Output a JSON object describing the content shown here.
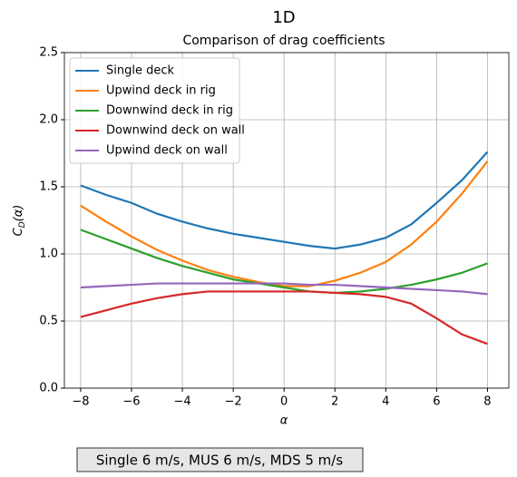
{
  "chart_data": {
    "type": "line",
    "suptitle": "1D",
    "title": "Comparison of drag coefficients",
    "xlabel": "α",
    "ylabel": {
      "main": "C",
      "sub": "D",
      "rest": "(α)"
    },
    "annotation": "Single 6 m/s, MUS 6 m/s, MDS 5 m/s",
    "x": [
      -8,
      -7,
      -6,
      -5,
      -4,
      -3,
      -2,
      -1,
      0,
      1,
      2,
      3,
      4,
      5,
      6,
      7,
      8
    ],
    "series": [
      {
        "name": "Single deck",
        "color": "#1f77b4",
        "values": [
          1.51,
          1.44,
          1.38,
          1.3,
          1.24,
          1.19,
          1.15,
          1.12,
          1.09,
          1.06,
          1.04,
          1.07,
          1.12,
          1.22,
          1.38,
          1.55,
          1.76
        ]
      },
      {
        "name": "Upwind deck in rig",
        "color": "#ff7f0e",
        "values": [
          1.36,
          1.24,
          1.13,
          1.03,
          0.95,
          0.88,
          0.83,
          0.79,
          0.76,
          0.76,
          0.8,
          0.86,
          0.94,
          1.07,
          1.24,
          1.45,
          1.69
        ]
      },
      {
        "name": "Downwind deck in rig",
        "color": "#2ca02c",
        "values": [
          1.18,
          1.11,
          1.04,
          0.97,
          0.91,
          0.86,
          0.81,
          0.78,
          0.75,
          0.72,
          0.71,
          0.72,
          0.74,
          0.77,
          0.81,
          0.86,
          0.93
        ]
      },
      {
        "name": "Downwind deck on wall",
        "color": "#d62728",
        "values": [
          0.53,
          0.58,
          0.63,
          0.67,
          0.7,
          0.72,
          0.72,
          0.72,
          0.72,
          0.72,
          0.71,
          0.7,
          0.68,
          0.63,
          0.52,
          0.4,
          0.33
        ]
      },
      {
        "name": "Upwind deck on wall",
        "color": "#9467bd",
        "values": [
          0.75,
          0.76,
          0.77,
          0.78,
          0.78,
          0.78,
          0.78,
          0.78,
          0.78,
          0.77,
          0.77,
          0.76,
          0.75,
          0.74,
          0.73,
          0.72,
          0.7
        ]
      }
    ],
    "xlim": [
      -8.64,
      8.84
    ],
    "xticks": [
      {
        "value": -8,
        "label": "−8"
      },
      {
        "value": -6,
        "label": "−6"
      },
      {
        "value": -4,
        "label": "−4"
      },
      {
        "value": -2,
        "label": "−2"
      },
      0,
      2,
      4,
      6,
      8
    ],
    "ylim": [
      0,
      2.5
    ],
    "yticks": [
      {
        "value": 0,
        "label": "0.0"
      },
      0.5,
      {
        "value": 1,
        "label": "1.0"
      },
      1.5,
      {
        "value": 2,
        "label": "2.0"
      },
      2.5
    ],
    "grid": true,
    "legend": "upper-left"
  }
}
